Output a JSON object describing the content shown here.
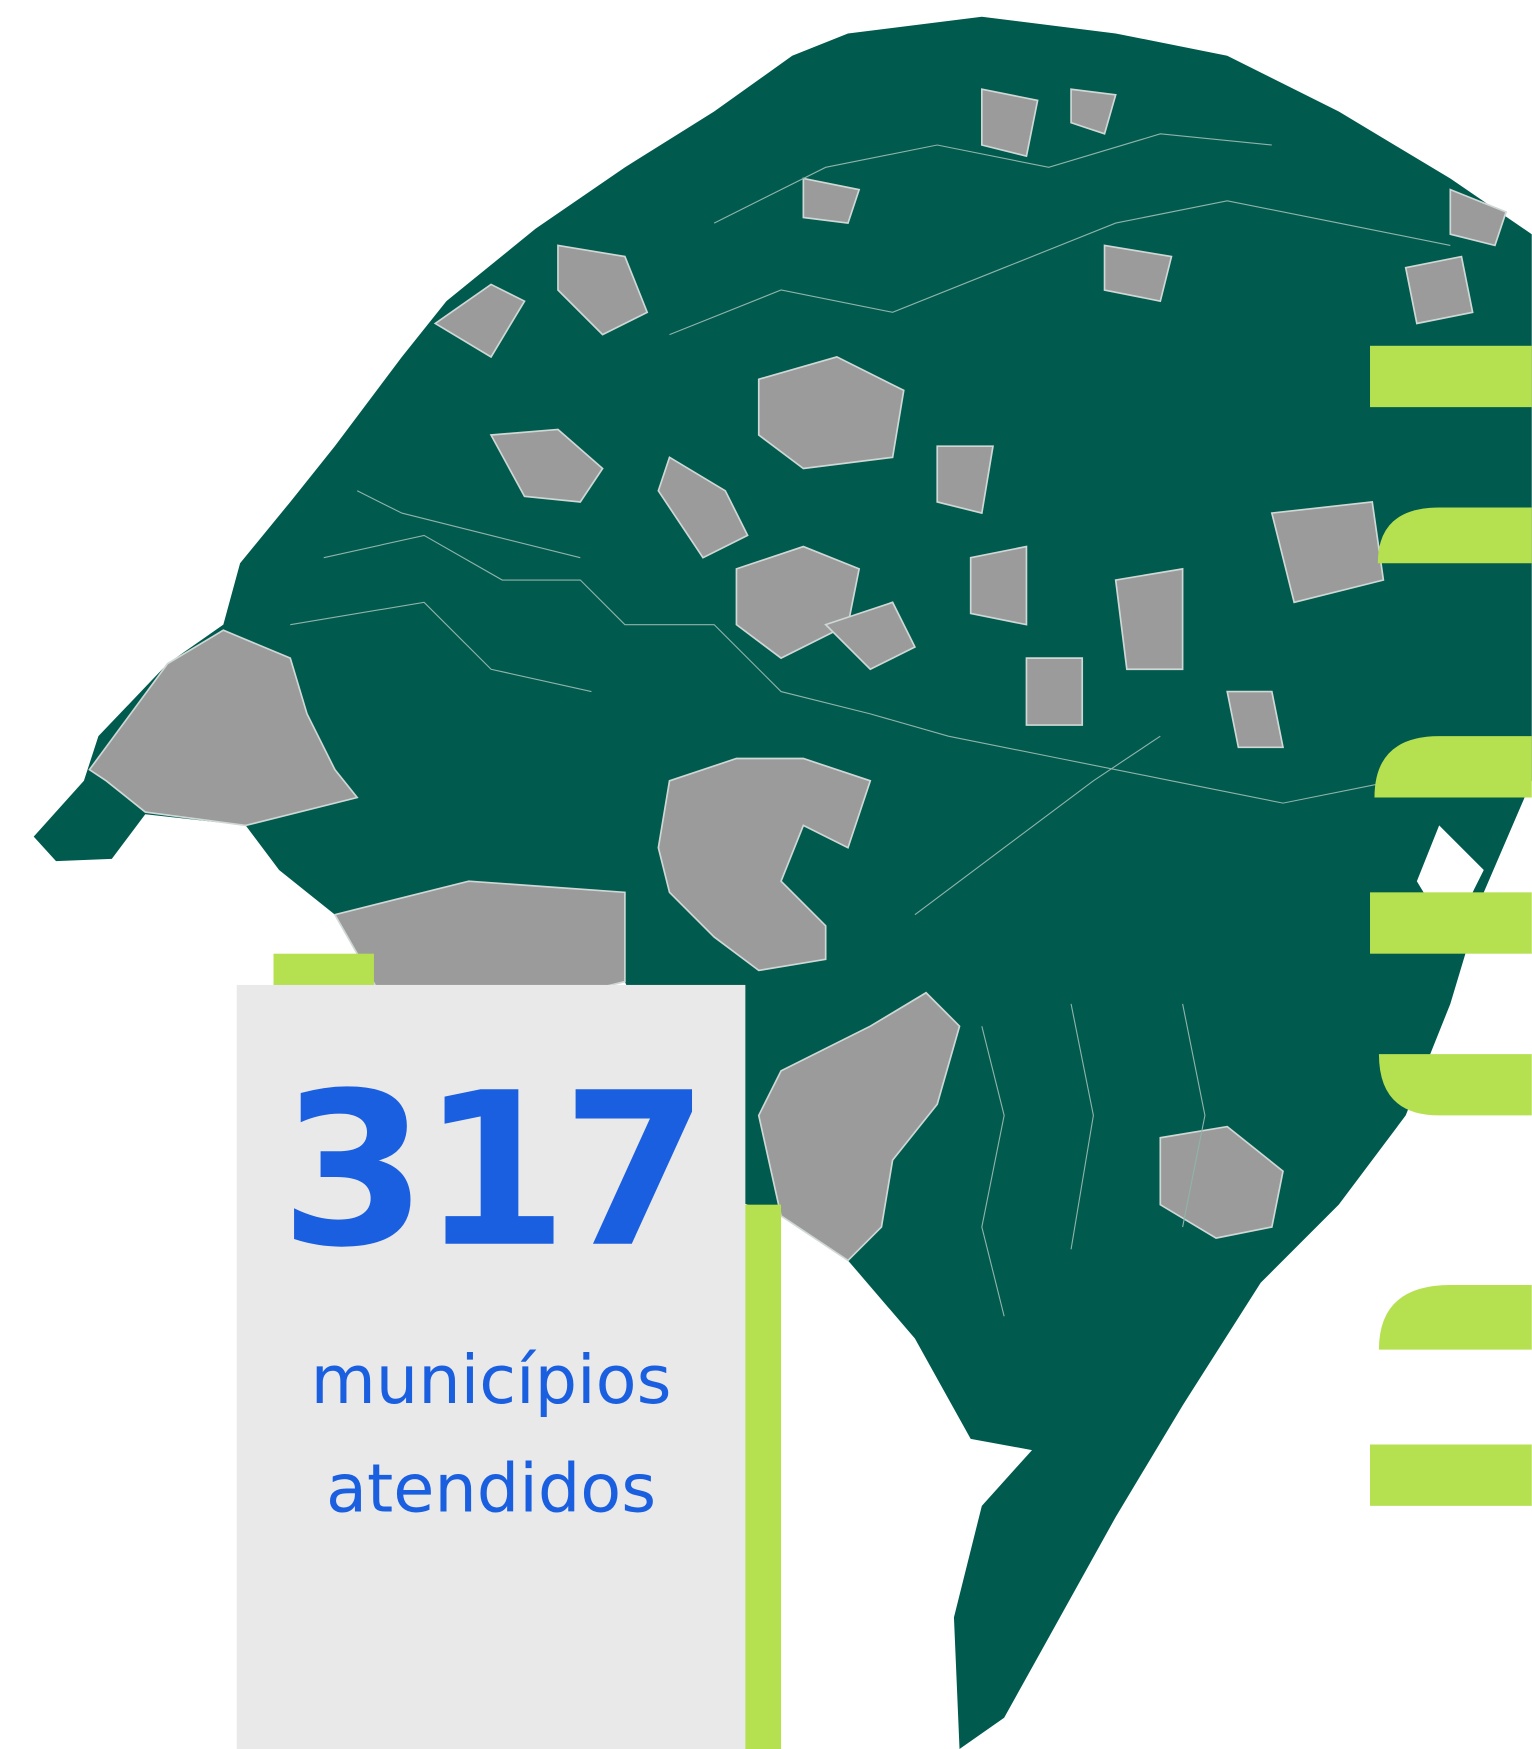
{
  "stat": {
    "value": 317,
    "label_line1": "municípios",
    "label_line2": "atendidos"
  }
}
